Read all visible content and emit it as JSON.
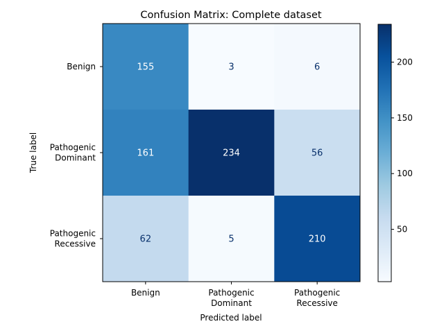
{
  "chart_data": {
    "type": "heatmap",
    "title": "Confusion Matrix: Complete dataset",
    "xlabel": "Predicted label",
    "ylabel": "True label",
    "x_categories": [
      [
        "Benign"
      ],
      [
        "Pathogenic",
        "Dominant"
      ],
      [
        "Pathogenic",
        "Recessive"
      ]
    ],
    "y_categories": [
      [
        "Benign"
      ],
      [
        "Pathogenic",
        "Dominant"
      ],
      [
        "Pathogenic",
        "Recessive"
      ]
    ],
    "matrix": [
      [
        155,
        3,
        6
      ],
      [
        161,
        234,
        56
      ],
      [
        62,
        5,
        210
      ]
    ],
    "colormap": "Blues",
    "colorbar": {
      "vmin": 3,
      "vmax": 234,
      "ticks": [
        50,
        100,
        150,
        200
      ]
    },
    "colors": {
      "low": "#f7fbff",
      "high": "#08306b",
      "text_dark": "#08306b",
      "text_light": "#ffffff"
    }
  }
}
